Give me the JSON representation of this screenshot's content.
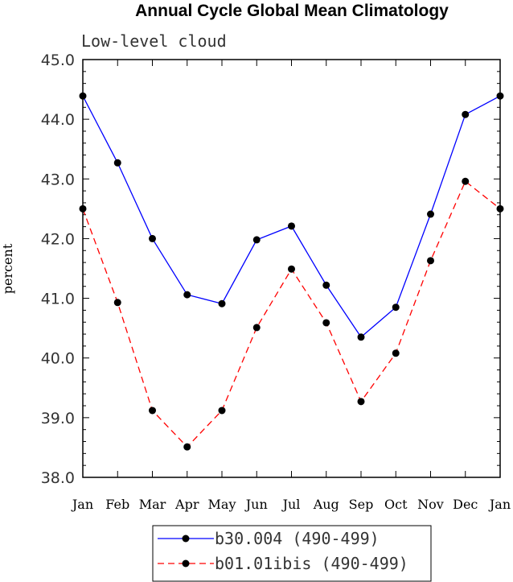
{
  "chart_data": {
    "type": "line",
    "title": "Annual Cycle Global Mean Climatology",
    "subtitle": "Low-level cloud",
    "ylabel": "percent",
    "xlabel": "",
    "ylim": [
      38,
      45
    ],
    "yticks": [
      "38.0",
      "39.0",
      "40.0",
      "41.0",
      "42.0",
      "43.0",
      "44.0",
      "45.0"
    ],
    "categories": [
      "Jan",
      "Feb",
      "Mar",
      "Apr",
      "May",
      "Jun",
      "Jul",
      "Aug",
      "Sep",
      "Oct",
      "Nov",
      "Dec",
      "Jan"
    ],
    "legend_position": "bottom",
    "series": [
      {
        "name": "b30.004 (490-499)",
        "color": "#0000ff",
        "dash": "solid",
        "values": [
          44.39,
          43.27,
          42.0,
          41.06,
          40.91,
          41.98,
          42.21,
          41.22,
          40.35,
          40.85,
          42.41,
          44.08,
          44.39
        ]
      },
      {
        "name": "b01.01ibis (490-499)",
        "color": "#ff0000",
        "dash": "dashed",
        "values": [
          42.5,
          40.93,
          39.12,
          38.51,
          39.12,
          40.51,
          41.49,
          40.59,
          39.27,
          40.08,
          41.63,
          42.96,
          42.5
        ]
      }
    ]
  }
}
